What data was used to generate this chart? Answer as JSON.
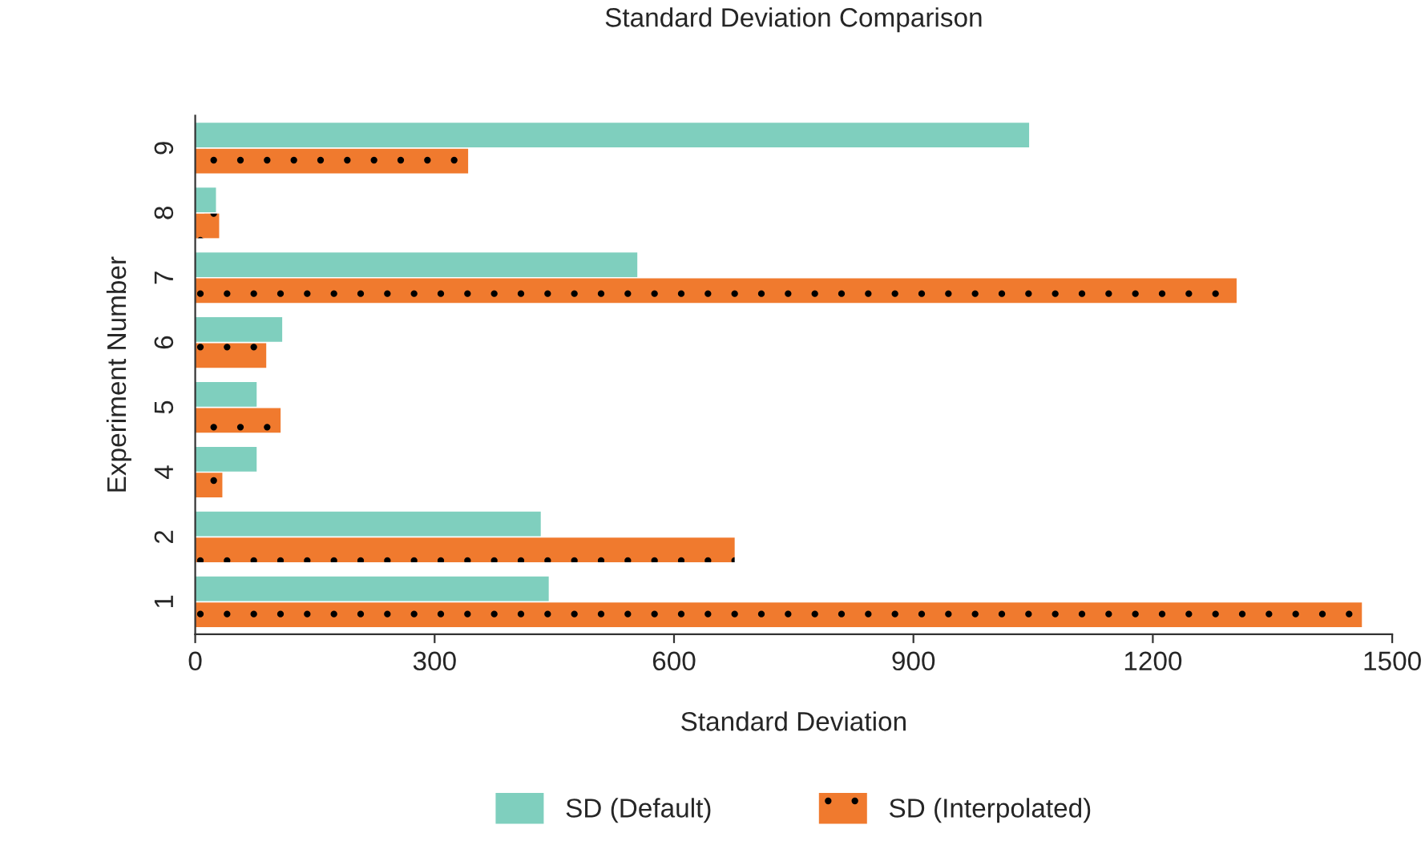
{
  "chart_data": {
    "type": "bar",
    "orientation": "horizontal",
    "title": "Standard Deviation Comparison",
    "xlabel": "Standard Deviation",
    "ylabel": "Experiment Number",
    "categories": [
      "9",
      "8",
      "7",
      "6",
      "5",
      "4",
      "2",
      "1"
    ],
    "series": [
      {
        "name": "SD (Default)",
        "color": "#7fcfbe",
        "values": [
          1045,
          26,
          554,
          109,
          77,
          77,
          433,
          443
        ]
      },
      {
        "name": "SD (Interpolated)",
        "color": "#f07a2e",
        "values": [
          342,
          30,
          1305,
          89,
          107,
          34,
          676,
          1462
        ]
      }
    ],
    "xlim": [
      0,
      1500
    ],
    "xticks": [
      0,
      300,
      600,
      900,
      1200,
      1500
    ],
    "grid": false,
    "legend": "bottom"
  }
}
